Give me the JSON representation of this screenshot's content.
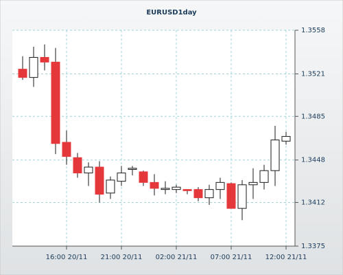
{
  "chart_data": {
    "type": "candlestick",
    "title": "EURUSD1day",
    "categories": [
      null,
      null,
      null,
      null,
      "16:00 20/11",
      null,
      null,
      null,
      null,
      "21:00 20/11",
      null,
      null,
      null,
      null,
      "02:00 21/11",
      null,
      null,
      null,
      null,
      "07:00 21/11",
      null,
      null,
      null,
      null,
      "12:00 21/11"
    ],
    "open": [
      1.3525,
      1.3518,
      1.3535,
      1.3531,
      1.3463,
      1.345,
      1.3437,
      1.3442,
      1.342,
      1.343,
      1.344,
      1.3438,
      1.3429,
      1.3423,
      1.3423,
      1.3423,
      1.3423,
      1.3416,
      1.3423,
      1.3428,
      1.3407,
      1.3427,
      1.3429,
      1.3439,
      1.3464
    ],
    "high": [
      1.3536,
      1.3544,
      1.3546,
      1.3543,
      1.3473,
      1.3454,
      1.3446,
      1.3447,
      1.3434,
      1.3443,
      1.3443,
      1.3439,
      1.3436,
      1.343,
      1.3427,
      1.3423,
      1.3425,
      1.3427,
      1.3433,
      1.3429,
      1.3431,
      1.3441,
      1.3444,
      1.3477,
      1.3472
    ],
    "low": [
      1.3516,
      1.351,
      1.3524,
      1.3453,
      1.3444,
      1.3433,
      1.3426,
      1.3412,
      1.3415,
      1.3426,
      1.3435,
      1.3426,
      1.3418,
      1.3419,
      1.342,
      1.3419,
      1.3413,
      1.341,
      1.3415,
      1.3407,
      1.3397,
      1.3415,
      1.3423,
      1.3426,
      1.3461
    ],
    "close": [
      1.3518,
      1.3535,
      1.3531,
      1.3462,
      1.3451,
      1.3437,
      1.3442,
      1.3419,
      1.3431,
      1.3437,
      1.3441,
      1.3429,
      1.3424,
      1.3424,
      1.3425,
      1.3422,
      1.3416,
      1.3423,
      1.3429,
      1.3407,
      1.3427,
      1.3429,
      1.3439,
      1.3465,
      1.3468
    ],
    "up_color": "#ffffff",
    "down_color": "#e5383b",
    "edge_color": "#1a1a1a",
    "ylim": [
      1.3375,
      1.3558
    ],
    "yticks": [
      1.3375,
      1.3412,
      1.3448,
      1.3485,
      1.3521,
      1.3558
    ],
    "grid": true
  }
}
